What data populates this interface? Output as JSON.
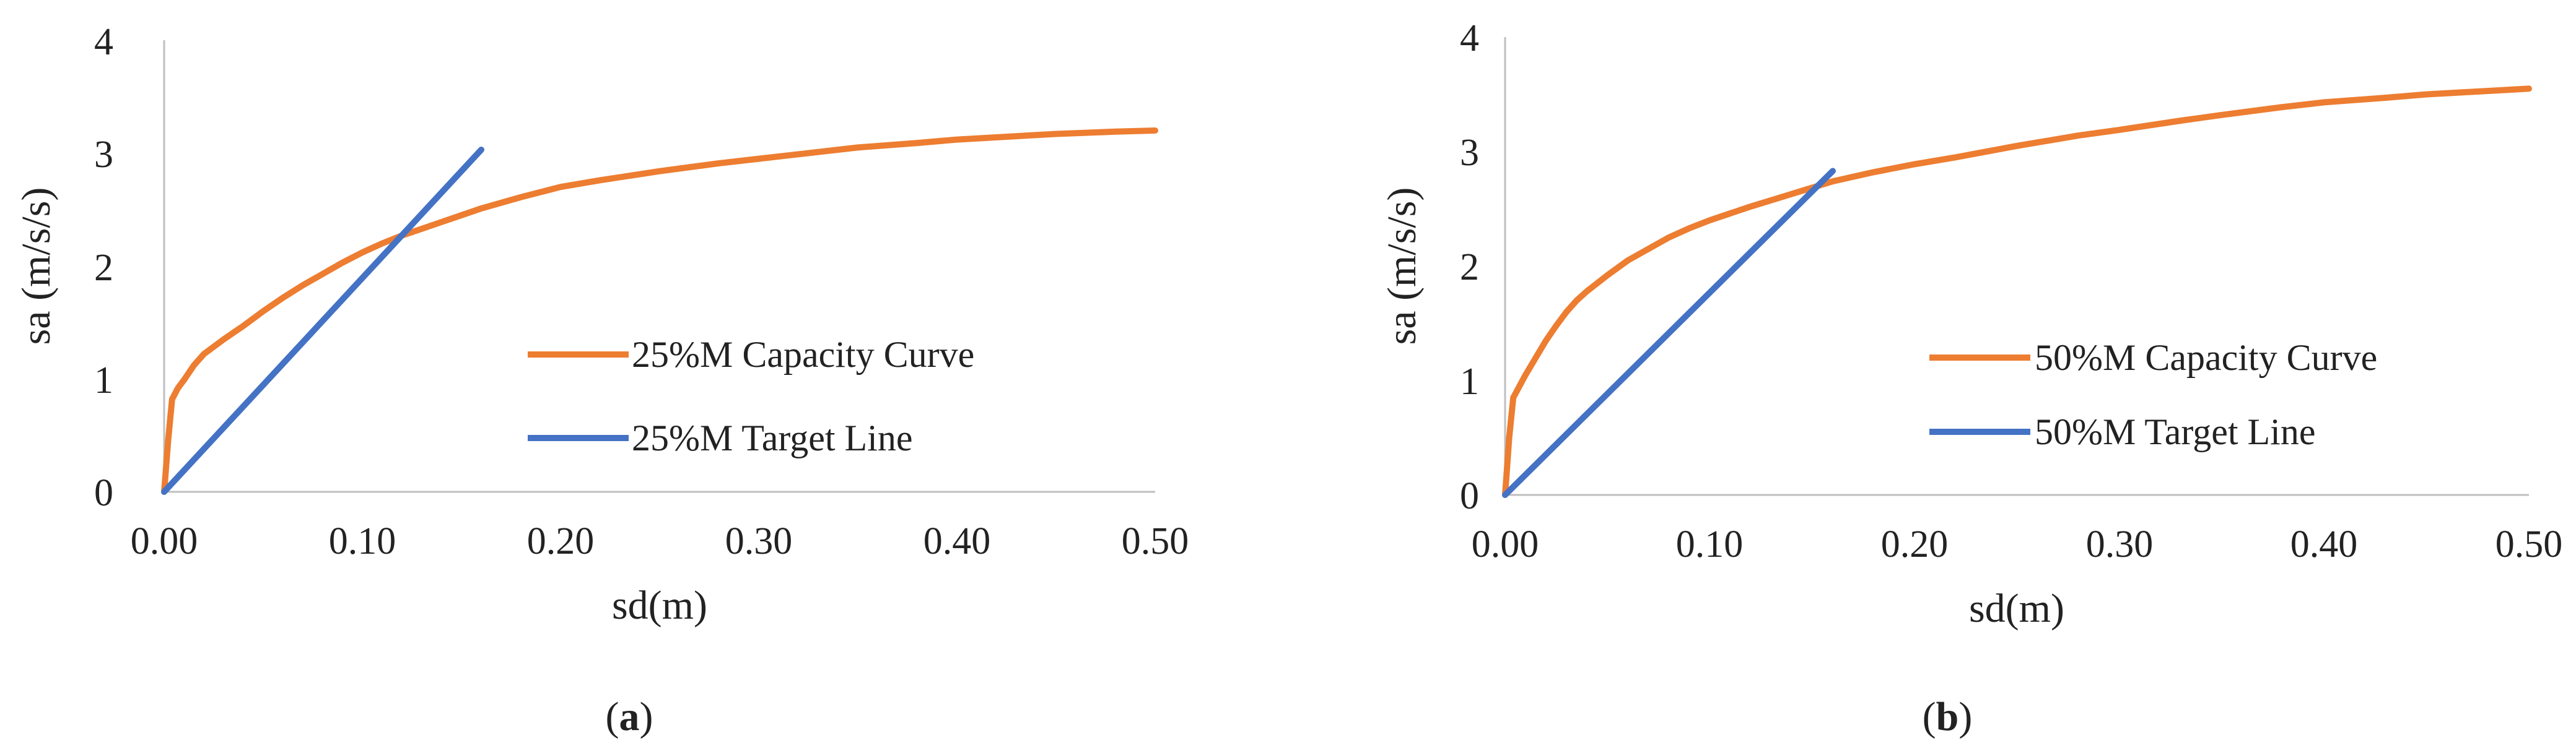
{
  "chart_data": [
    {
      "type": "line",
      "panel_label": "a",
      "xlabel": "sd(m)",
      "ylabel": "sa (m/s/s)",
      "xlim": [
        0,
        0.5
      ],
      "ylim": [
        0,
        4
      ],
      "x_ticks": [
        0,
        0.1,
        0.2,
        0.3,
        0.4,
        0.5
      ],
      "x_tick_labels": [
        "0.00",
        "0.10",
        "0.20",
        "0.30",
        "0.40",
        "0.50"
      ],
      "y_ticks": [
        0,
        1,
        2,
        3,
        4
      ],
      "y_tick_labels": [
        "0",
        "1",
        "2",
        "3",
        "4"
      ],
      "grid": false,
      "legend_position": "center-right",
      "series": [
        {
          "name": "25%M Capacity Curve",
          "color": "#ED7D31",
          "x": [
            0,
            0.002,
            0.004,
            0.007,
            0.01,
            0.015,
            0.02,
            0.03,
            0.04,
            0.05,
            0.06,
            0.07,
            0.08,
            0.09,
            0.1,
            0.11,
            0.12,
            0.13,
            0.14,
            0.15,
            0.16,
            0.18,
            0.2,
            0.22,
            0.25,
            0.28,
            0.3,
            0.33,
            0.35,
            0.38,
            0.4,
            0.43,
            0.45,
            0.48,
            0.5
          ],
          "y": [
            0,
            0.45,
            0.82,
            0.92,
            0.99,
            1.12,
            1.22,
            1.35,
            1.47,
            1.6,
            1.72,
            1.83,
            1.93,
            2.03,
            2.12,
            2.2,
            2.27,
            2.33,
            2.39,
            2.45,
            2.51,
            2.61,
            2.7,
            2.76,
            2.84,
            2.91,
            2.95,
            3.01,
            3.05,
            3.09,
            3.12,
            3.15,
            3.17,
            3.19,
            3.2
          ]
        },
        {
          "name": "25%M Target Line",
          "color": "#4472C4",
          "x": [
            0,
            0.16
          ],
          "y": [
            0,
            3.03
          ]
        }
      ]
    },
    {
      "type": "line",
      "panel_label": "b",
      "xlabel": "sd(m)",
      "ylabel": "sa (m/s/s)",
      "xlim": [
        0,
        0.5
      ],
      "ylim": [
        0,
        4
      ],
      "x_ticks": [
        0,
        0.1,
        0.2,
        0.3,
        0.4,
        0.5
      ],
      "x_tick_labels": [
        "0.00",
        "0.10",
        "0.20",
        "0.30",
        "0.40",
        "0.50"
      ],
      "y_ticks": [
        0,
        1,
        2,
        3,
        4
      ],
      "y_tick_labels": [
        "0",
        "1",
        "2",
        "3",
        "4"
      ],
      "grid": false,
      "legend_position": "center-right",
      "series": [
        {
          "name": "50%M Capacity Curve",
          "color": "#ED7D31",
          "x": [
            0,
            0.002,
            0.004,
            0.007,
            0.01,
            0.015,
            0.02,
            0.025,
            0.03,
            0.035,
            0.04,
            0.05,
            0.06,
            0.07,
            0.08,
            0.09,
            0.1,
            0.12,
            0.14,
            0.16,
            0.18,
            0.2,
            0.22,
            0.25,
            0.28,
            0.3,
            0.33,
            0.35,
            0.38,
            0.4,
            0.43,
            0.45,
            0.48,
            0.5
          ],
          "y": [
            0,
            0.5,
            0.85,
            0.95,
            1.05,
            1.2,
            1.35,
            1.48,
            1.6,
            1.7,
            1.78,
            1.92,
            2.05,
            2.15,
            2.25,
            2.33,
            2.4,
            2.52,
            2.63,
            2.74,
            2.82,
            2.89,
            2.95,
            3.05,
            3.14,
            3.19,
            3.27,
            3.32,
            3.39,
            3.43,
            3.47,
            3.5,
            3.53,
            3.55
          ]
        },
        {
          "name": "50%M Target Line",
          "color": "#4472C4",
          "x": [
            0,
            0.16
          ],
          "y": [
            0,
            2.83
          ]
        }
      ]
    }
  ]
}
